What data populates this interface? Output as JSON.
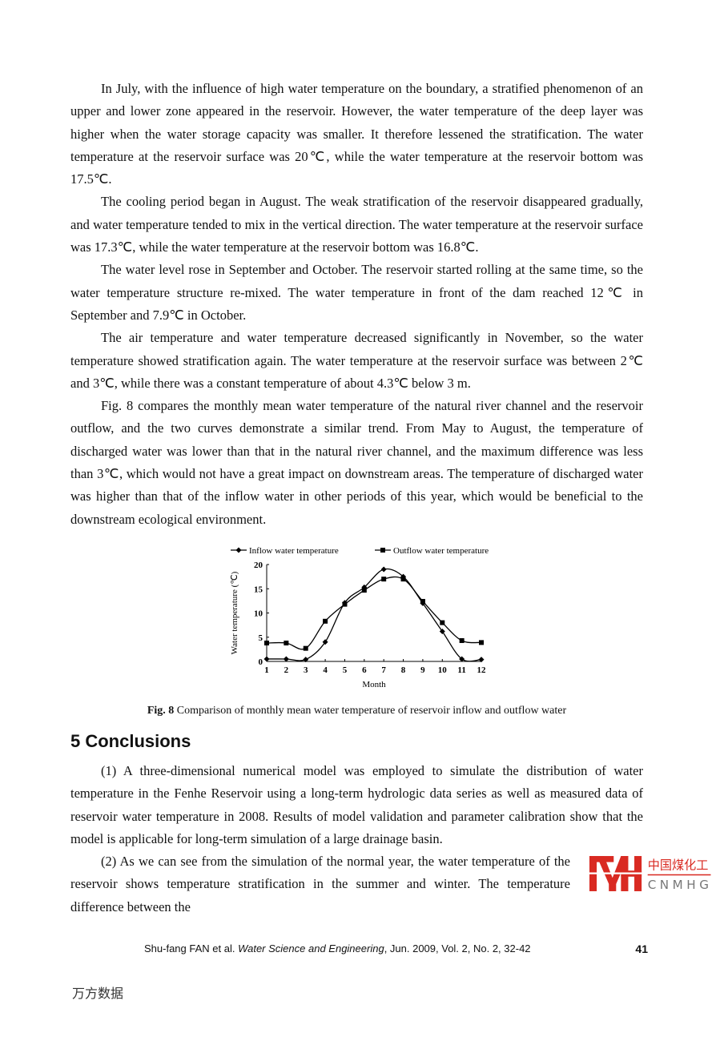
{
  "paragraphs": [
    "In July, with the influence of high water temperature on the boundary, a stratified phenomenon of an upper and lower zone appeared in the reservoir. However, the water temperature of the deep layer was higher when the water storage capacity was smaller. It therefore lessened the stratification. The water temperature at the reservoir surface was 20℃, while the water temperature at the reservoir bottom was 17.5℃.",
    "The cooling period began in August. The weak stratification of the reservoir disappeared gradually, and water temperature tended to mix in the vertical direction. The water temperature at the reservoir surface was 17.3℃, while the water temperature at the reservoir bottom was 16.8℃.",
    "The water level rose in September and October. The reservoir started rolling at the same time, so the water temperature structure re-mixed. The water temperature in front of the dam reached 12℃ in September and 7.9℃ in October.",
    "The air temperature and water temperature decreased significantly in November, so the water temperature showed stratification again. The water temperature at the reservoir surface was between 2℃ and 3℃, while there was a constant temperature of about 4.3℃ below 3 m.",
    "Fig. 8 compares the monthly mean water temperature of the natural river channel and the reservoir outflow, and the two curves demonstrate a similar trend. From May to August, the temperature of discharged water was lower than that in the natural river channel, and the maximum difference was less than 3℃, which would not have a great impact on downstream areas. The temperature of discharged water was higher than that of the inflow water in other periods of this year, which would be beneficial to the downstream ecological environment."
  ],
  "chart_data": {
    "type": "line",
    "x": [
      1,
      2,
      3,
      4,
      5,
      6,
      7,
      8,
      9,
      10,
      11,
      12
    ],
    "series": [
      {
        "name": "Inflow water temperature",
        "marker": "diamond",
        "values": [
          0.5,
          0.5,
          0.4,
          4,
          12.1,
          15.3,
          19,
          17.5,
          12,
          6.2,
          0.5,
          0.4
        ]
      },
      {
        "name": "Outflow water temperature",
        "marker": "square",
        "values": [
          3.8,
          3.8,
          2.7,
          8.3,
          11.8,
          14.7,
          17,
          17,
          12.4,
          8,
          4.3,
          3.9
        ]
      }
    ],
    "xlabel": "Month",
    "ylabel": "Water temperature (℃)",
    "xlim": [
      1,
      12
    ],
    "ylim": [
      0,
      20
    ],
    "xticks": [
      "1",
      "2",
      "3",
      "4",
      "5",
      "6",
      "7",
      "8",
      "9",
      "10",
      "11",
      "12"
    ],
    "yticks": [
      "0",
      "5",
      "10",
      "15",
      "20"
    ],
    "legend": "top",
    "grid": false
  },
  "caption": {
    "label": "Fig. 8",
    "text": " Comparison of monthly mean water temperature of reservoir inflow and outflow water"
  },
  "heading": "5 Conclusions",
  "conclusions": [
    "(1) A three-dimensional numerical model was employed to simulate the distribution of water temperature in the Fenhe Reservoir using a long-term hydrologic data series as well as measured data of reservoir water temperature in 2008. Results of model validation and parameter calibration show that the model is applicable for long-term simulation of a large drainage basin.",
    "(2) As we can see from the simulation of the normal year, the water temperature of the reservoir shows temperature stratification in the summer and winter. The temperature difference between the"
  ],
  "footer": {
    "authors": "Shu-fang FAN et al. ",
    "journal": "Water Science and Engineering",
    "details": ", Jun. 2009, Vol. 2, No. 2, 32-42",
    "page": "41"
  },
  "watermark": {
    "logo_text": "中国煤化工",
    "logo_sub": "CNMHG",
    "source": "万方数据"
  }
}
